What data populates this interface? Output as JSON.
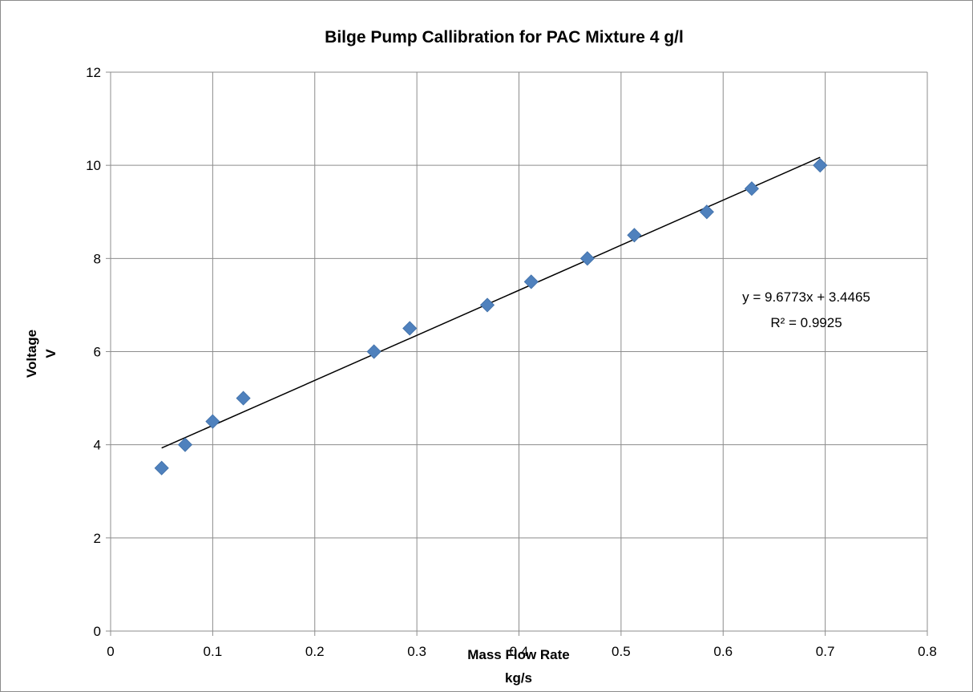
{
  "chart_data": {
    "type": "scatter",
    "title": "Bilge Pump Callibration for PAC Mixture 4 g/l",
    "xlabel": [
      "Mass Flow Rate",
      "kg/s"
    ],
    "ylabel": [
      "Voltage",
      "V"
    ],
    "xlim": [
      0,
      0.8
    ],
    "ylim": [
      0,
      12
    ],
    "xticks": [
      0,
      0.1,
      0.2,
      0.3,
      0.4,
      0.5,
      0.6,
      0.7,
      0.8
    ],
    "yticks": [
      0,
      2,
      4,
      6,
      8,
      10,
      12
    ],
    "xtick_labels": [
      "0",
      "0.1",
      "0.2",
      "0.3",
      "0.4",
      "0.5",
      "0.6",
      "0.7",
      "0.8"
    ],
    "ytick_labels": [
      "0",
      "2",
      "4",
      "6",
      "8",
      "10",
      "12"
    ],
    "grid": true,
    "legend": "none",
    "marker_color": "#4f81bd",
    "trendline_color": "#000000",
    "series": [
      {
        "x": [
          0.05,
          0.073,
          0.1,
          0.13,
          0.258,
          0.293,
          0.369,
          0.412,
          0.467,
          0.513,
          0.584,
          0.628,
          0.695
        ],
        "y": [
          3.5,
          4.0,
          4.5,
          5.0,
          6.0,
          6.5,
          7.0,
          7.5,
          8.0,
          8.5,
          9.0,
          9.5,
          10.0
        ]
      }
    ],
    "trendline": {
      "slope": 9.6773,
      "intercept": 3.4465,
      "x_range": [
        0.05,
        0.695
      ],
      "equation": "y = 9.6773x + 3.4465",
      "r_squared": "R² = 0.9925"
    }
  }
}
